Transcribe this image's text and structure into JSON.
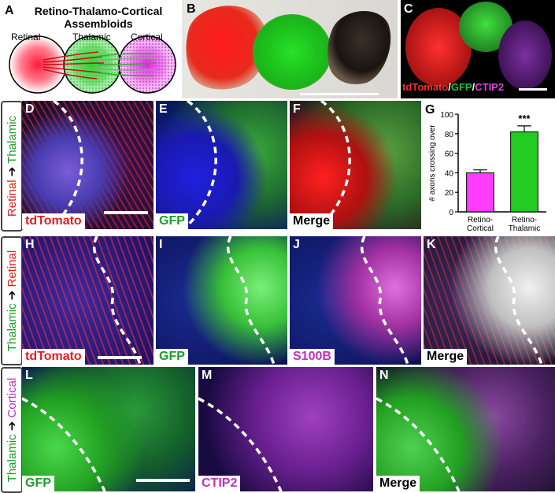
{
  "panel_letters": {
    "A": "A",
    "B": "B",
    "C": "C",
    "D": "D",
    "E": "E",
    "F": "F",
    "G": "G",
    "H": "H",
    "I": "I",
    "J": "J",
    "K": "K",
    "L": "L",
    "M": "M",
    "N": "N"
  },
  "schematic": {
    "title_line1": "Retino-Thalamo-Cortical",
    "title_line2": "Assembloids",
    "labels": [
      "Retinal",
      "Thalamic",
      "Cortical"
    ]
  },
  "panel_c": {
    "legend": [
      "tdTomato",
      "/",
      "GFP",
      "/",
      "CTIP2"
    ]
  },
  "row_labels": {
    "row1": [
      "Retinal",
      "Thalamic"
    ],
    "row2": [
      "Thalamic",
      "Retinal"
    ],
    "row3": [
      "Thalamic",
      "Cortical"
    ],
    "arrow": "➔"
  },
  "channels": {
    "D": "tdTomato",
    "E": "GFP",
    "F": "Merge",
    "H": "tdTomato",
    "I": "GFP",
    "J": "S100B",
    "K": "Merge",
    "L": "GFP",
    "M": "CTIP2",
    "N": "Merge"
  },
  "colors": {
    "red": "#ff2a2a",
    "green": "#1fbf3a",
    "magenta": "#e040e0",
    "blue": "#1e3cff"
  },
  "chart_data": {
    "type": "bar",
    "categories": [
      [
        "Retino-",
        "Cortical"
      ],
      [
        "Retino-",
        "Thalamic"
      ]
    ],
    "values": [
      40,
      82
    ],
    "errors": [
      3,
      6
    ],
    "bar_colors": [
      "#ff3cff",
      "#22cc22"
    ],
    "ylabel": "# axons crossing over",
    "ylim": [
      0,
      100
    ],
    "yticks": [
      0,
      20,
      40,
      60,
      80,
      100
    ],
    "annotations": [
      {
        "category_index": 1,
        "text": "***"
      }
    ]
  }
}
